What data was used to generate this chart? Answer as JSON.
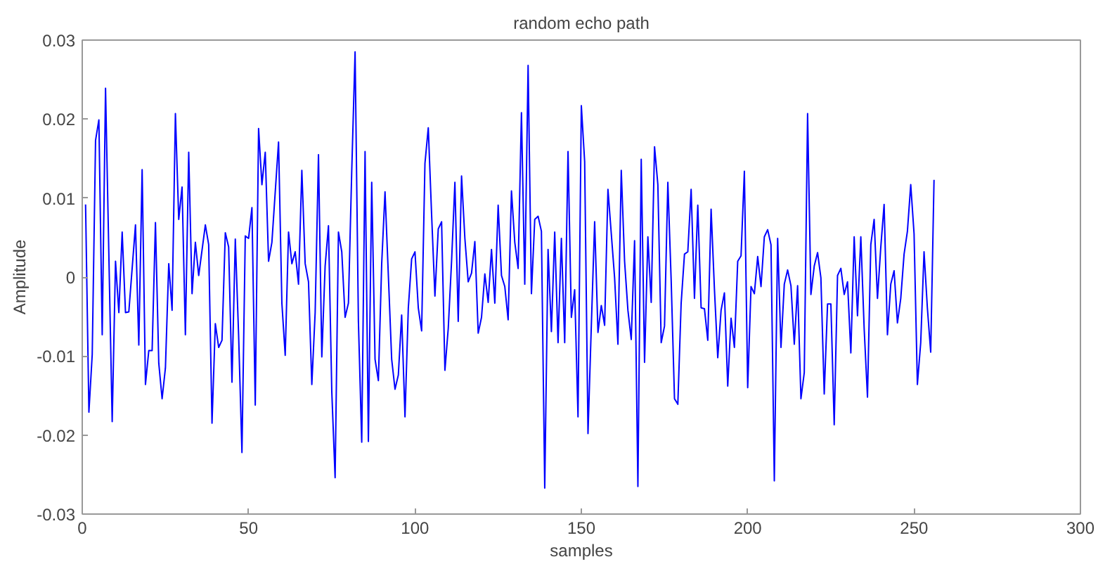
{
  "chart_data": {
    "type": "line",
    "title": "random echo path",
    "xlabel": "samples",
    "ylabel": "Amplitude",
    "xlim": [
      0,
      300
    ],
    "xticks": [
      0,
      50,
      100,
      150,
      200,
      250,
      300
    ],
    "ylim": [
      -0.03,
      0.03
    ],
    "yticks": [
      -0.03,
      -0.02,
      -0.01,
      0,
      0.01,
      0.02,
      0.03
    ],
    "grid": false,
    "marker": "none",
    "line_style": "solid",
    "series": [
      {
        "color": "#0000ff",
        "x": [
          1,
          2,
          3,
          4,
          5,
          6,
          7,
          9,
          10,
          11,
          12,
          13,
          14,
          16,
          17,
          18,
          19,
          20,
          21,
          22,
          23,
          24,
          25,
          26,
          27,
          28,
          29,
          30,
          31,
          32,
          33,
          34,
          35,
          37,
          38,
          39,
          40,
          41,
          42,
          43,
          44,
          45,
          46,
          47,
          48,
          49,
          50,
          51,
          52,
          53,
          54,
          55,
          56,
          57,
          59,
          60,
          61,
          62,
          63,
          64,
          65,
          66,
          67,
          68,
          69,
          70,
          71,
          72,
          73,
          74,
          75,
          76,
          77,
          78,
          79,
          80,
          81,
          82,
          83,
          84,
          85,
          86,
          87,
          88,
          89,
          90,
          91,
          92,
          93,
          94,
          95,
          96,
          97,
          98,
          99,
          100,
          101,
          102,
          103,
          104,
          105,
          106,
          107,
          108,
          109,
          110,
          111,
          112,
          113,
          114,
          115,
          116,
          117,
          118,
          119,
          120,
          121,
          122,
          123,
          124,
          125,
          126,
          127,
          128,
          129,
          130,
          131,
          132,
          133,
          134,
          135,
          136,
          137,
          138,
          139,
          140,
          141,
          142,
          143,
          144,
          145,
          146,
          147,
          148,
          149,
          150,
          151,
          152,
          153,
          154,
          155,
          156,
          157,
          158,
          159,
          160,
          161,
          162,
          163,
          164,
          165,
          166,
          167,
          168,
          169,
          170,
          171,
          172,
          173,
          174,
          175,
          176,
          177,
          178,
          179,
          180,
          181,
          182,
          183,
          184,
          185,
          186,
          187,
          188,
          189,
          190,
          191,
          192,
          193,
          194,
          195,
          196,
          197,
          198,
          199,
          200,
          201,
          202,
          203,
          204,
          205,
          206,
          207,
          208,
          209,
          210,
          211,
          212,
          213,
          214,
          215,
          216,
          217,
          218,
          219,
          220,
          221,
          222,
          223,
          224,
          225,
          226,
          227,
          228,
          229,
          230,
          231,
          232,
          233,
          234,
          235,
          236,
          237,
          238,
          239,
          240,
          241,
          242,
          243,
          244,
          245,
          246,
          247,
          248,
          249,
          250,
          251,
          252,
          253,
          254,
          255,
          256
        ],
        "values": [
          0.0092,
          -0.0171,
          -0.0098,
          0.0173,
          0.0199,
          -0.0073,
          0.0239,
          -0.0183,
          0.002,
          -0.0045,
          0.0057,
          -0.0045,
          -0.0044,
          0.0066,
          -0.0086,
          0.0136,
          -0.0136,
          -0.0093,
          -0.0093,
          0.0069,
          -0.0109,
          -0.0154,
          -0.0115,
          0.0017,
          -0.0042,
          0.0207,
          0.0073,
          0.0114,
          -0.0073,
          0.0158,
          -0.0021,
          0.0044,
          0.0002,
          0.0066,
          0.0041,
          -0.0185,
          -0.0059,
          -0.0089,
          -0.008,
          0.0056,
          0.0038,
          -0.0133,
          0.0048,
          -0.0074,
          -0.0222,
          0.0052,
          0.0049,
          0.0088,
          -0.0162,
          0.0188,
          0.0117,
          0.0158,
          0.002,
          0.0044,
          0.0171,
          -0.0033,
          -0.0099,
          0.0057,
          0.0017,
          0.0032,
          -0.0009,
          0.0135,
          0.0017,
          -0.0006,
          -0.0136,
          -0.0045,
          0.0155,
          -0.0101,
          0.0014,
          0.0065,
          -0.0145,
          -0.0254,
          0.0057,
          0.0032,
          -0.0051,
          -0.0033,
          0.0135,
          0.0285,
          -0.0056,
          -0.0209,
          0.0159,
          -0.0208,
          0.012,
          -0.0104,
          -0.0131,
          0.0017,
          0.0108,
          0.0002,
          -0.0104,
          -0.0142,
          -0.0124,
          -0.0048,
          -0.0177,
          -0.0039,
          0.0023,
          0.0032,
          -0.0039,
          -0.0068,
          0.0144,
          0.0189,
          0.0079,
          -0.0024,
          0.0061,
          0.007,
          -0.0118,
          -0.0065,
          0.002,
          0.012,
          -0.0056,
          0.0128,
          0.0049,
          -0.0006,
          0.0005,
          0.0045,
          -0.0071,
          -0.0051,
          0.0004,
          -0.0032,
          0.0035,
          -0.0033,
          0.0091,
          0.0002,
          -0.0012,
          -0.0054,
          0.0109,
          0.0044,
          0.0011,
          0.0208,
          -0.0009,
          0.0268,
          -0.0021,
          0.0073,
          0.0077,
          0.0058,
          -0.0267,
          0.0035,
          -0.0069,
          0.0057,
          -0.0083,
          0.0049,
          -0.0083,
          0.0159,
          -0.0051,
          -0.0016,
          -0.0177,
          0.0217,
          0.0146,
          -0.0198,
          -0.0062,
          0.007,
          -0.007,
          -0.0036,
          -0.0061,
          0.0111,
          0.0055,
          -0.0001,
          -0.0085,
          0.0135,
          0.002,
          -0.0042,
          -0.0079,
          0.0046,
          -0.0265,
          0.0149,
          -0.0108,
          0.0051,
          -0.0032,
          0.0165,
          0.0117,
          -0.0083,
          -0.0062,
          0.012,
          -0.0004,
          -0.0154,
          -0.0161,
          -0.0033,
          0.0029,
          0.0032,
          0.0111,
          -0.0027,
          0.0091,
          -0.0039,
          -0.004,
          -0.008,
          0.0086,
          -0.0015,
          -0.0102,
          -0.0042,
          -0.002,
          -0.0138,
          -0.0052,
          -0.0089,
          0.002,
          0.0027,
          0.0134,
          -0.014,
          -0.0012,
          -0.0021,
          0.0026,
          -0.0012,
          0.0051,
          0.006,
          0.0041,
          -0.0258,
          0.0049,
          -0.0089,
          -0.0009,
          0.0009,
          -0.0011,
          -0.0085,
          -0.0011,
          -0.0154,
          -0.0121,
          0.0207,
          -0.0022,
          0.0014,
          0.0031,
          -0.0001,
          -0.0148,
          -0.0034,
          -0.0034,
          -0.0187,
          0.0002,
          0.0011,
          -0.0022,
          -0.0006,
          -0.0096,
          0.0051,
          -0.0049,
          0.0051,
          -0.0065,
          -0.0152,
          0.0041,
          0.0073,
          -0.0027,
          0.0038,
          0.0092,
          -0.0073,
          -0.0009,
          0.0008,
          -0.0058,
          -0.0027,
          0.0029,
          0.0058,
          0.0117,
          0.0055,
          -0.0136,
          -0.0083,
          0.0032,
          -0.0039,
          -0.0095,
          0.0123
        ]
      }
    ]
  }
}
